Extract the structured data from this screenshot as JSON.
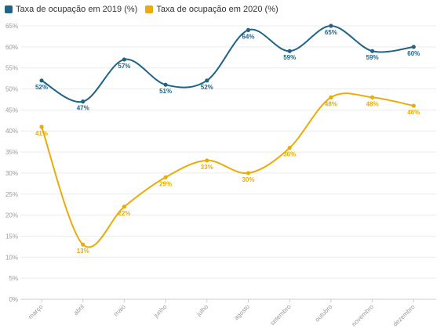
{
  "chart_data": {
    "type": "line",
    "title": "",
    "xlabel": "",
    "ylabel": "",
    "categories": [
      "março",
      "abril",
      "maio",
      "junho",
      "julho",
      "agosto",
      "setembro",
      "outubro",
      "novembro",
      "dezembro"
    ],
    "ylim": [
      0,
      65
    ],
    "yticks": [
      0,
      5,
      10,
      15,
      20,
      25,
      30,
      35,
      40,
      45,
      50,
      55,
      60,
      65
    ],
    "ytick_suffix": "%",
    "grid": true,
    "legend_position": "top-left",
    "series": [
      {
        "name": "Taxa de ocupação em 2019 (%)",
        "color": "#1f6387",
        "values": [
          52,
          47,
          57,
          51,
          52,
          64,
          59,
          65,
          59,
          60
        ],
        "labels": [
          "52%",
          "47%",
          "57%",
          "51%",
          "52%",
          "64%",
          "59%",
          "65%",
          "59%",
          "60%"
        ]
      },
      {
        "name": "Taxa de ocupação em 2020 (%)",
        "color": "#e8ad0a",
        "values": [
          41,
          13,
          22,
          29,
          33,
          30,
          36,
          48,
          48,
          46
        ],
        "labels": [
          "41%",
          "13%",
          "22%",
          "29%",
          "33%",
          "30%",
          "36%",
          "48%",
          "48%",
          "46%"
        ]
      }
    ]
  }
}
